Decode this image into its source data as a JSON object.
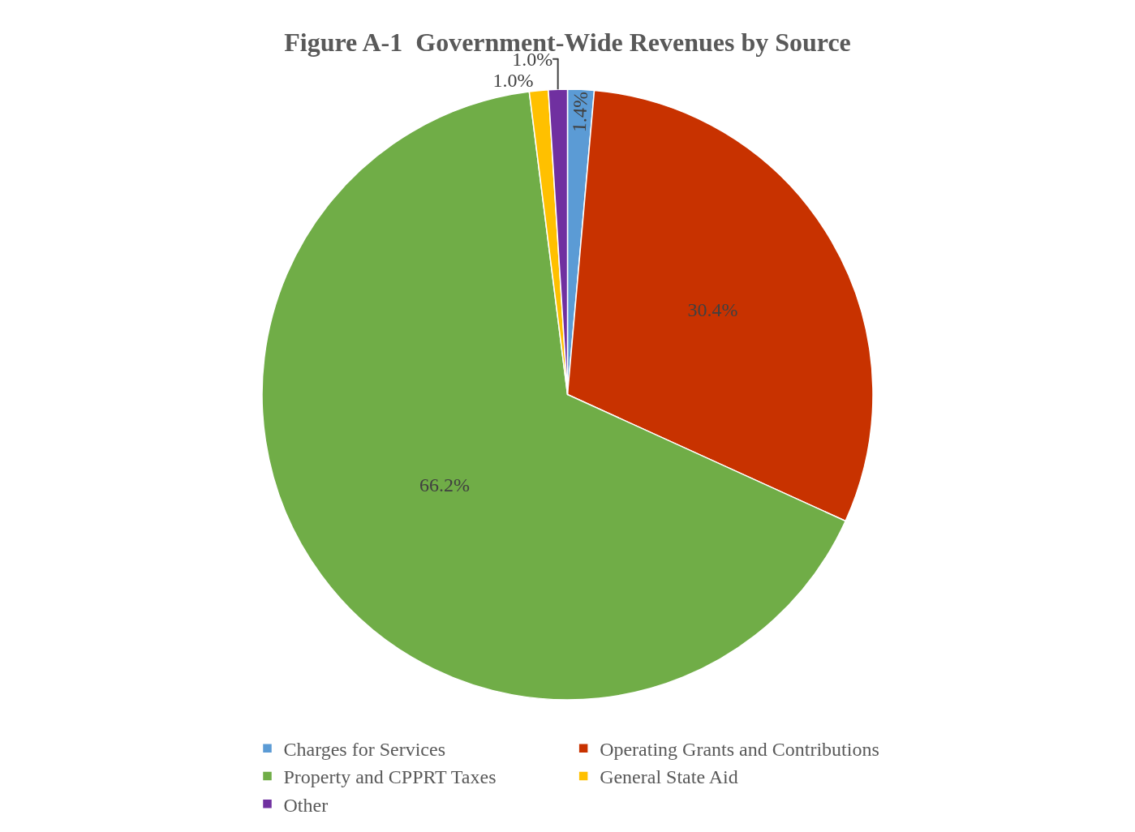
{
  "chart_data": {
    "type": "pie",
    "title": "Figure A-1  Government-Wide Revenues by Source",
    "categories": [
      "Charges for Services",
      "Operating Grants and Contributions",
      "Property and CPPRT Taxes",
      "General State Aid",
      "Other"
    ],
    "values": [
      1.4,
      30.4,
      66.2,
      1.0,
      1.0
    ],
    "colors": [
      "#5b9bd5",
      "#c83200",
      "#70ad47",
      "#ffc000",
      "#7030a0"
    ],
    "value_labels": [
      "1.4%",
      "30.4%",
      "66.2%",
      "1.0%",
      "1.0%"
    ],
    "legend": "bottom"
  }
}
